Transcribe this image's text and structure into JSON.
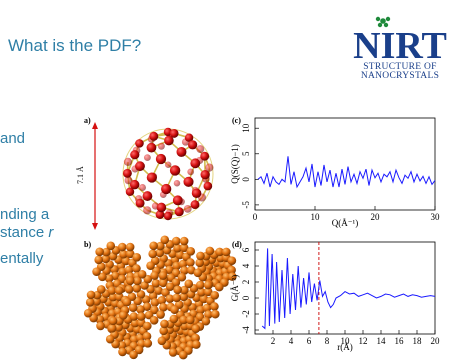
{
  "slide": {
    "title": "What is the PDF?",
    "bullets": [
      {
        "text": " and"
      },
      {
        "text": "nding a"
      },
      {
        "text": "stance ",
        "italic": "r"
      },
      {
        "text": "entally"
      }
    ]
  },
  "logo": {
    "brand": "NIRT",
    "subtitle_line1": "STRUCTURE OF",
    "subtitle_line2": "NANOCRYSTALS",
    "colors": {
      "brand": "#1a3f8a",
      "star": "#1f8a3b"
    }
  },
  "panels": {
    "a": {
      "label": "a)",
      "size_label": "7.1 Å"
    },
    "b": {
      "label": "b)"
    },
    "c": {
      "label": "(c)"
    },
    "d": {
      "label": "(d)"
    }
  },
  "chart_data": [
    {
      "type": "line",
      "panel": "c",
      "xlabel": "Q(Å⁻¹)",
      "ylabel": "Q(S(Q)−1)",
      "xlim": [
        0,
        30
      ],
      "ylim": [
        -6,
        12
      ],
      "xticks": [
        0,
        10,
        20,
        30
      ],
      "yticks": [
        -5,
        0,
        5,
        10
      ],
      "line_color": "#1a1aff",
      "series": [
        {
          "x": [
            0.5,
            1,
            1.5,
            2,
            2.5,
            3,
            3.5,
            4,
            4.5,
            5,
            5.5,
            6,
            6.5,
            7,
            7.5,
            8,
            8.5,
            9,
            9.5,
            10,
            10.5,
            11,
            11.5,
            12,
            12.5,
            13,
            13.5,
            14,
            14.5,
            15,
            15.5,
            16,
            16.5,
            17,
            17.5,
            18,
            18.5,
            19,
            19.5,
            20,
            20.5,
            21,
            21.5,
            22,
            22.5,
            23,
            23.5,
            24,
            24.5,
            25,
            25.5,
            26,
            26.5,
            27,
            27.5,
            28,
            28.5,
            29,
            29.5,
            30
          ],
          "y": [
            0,
            0.5,
            -0.8,
            1.2,
            -1.5,
            0.5,
            -0.5,
            -1,
            0,
            -0.5,
            4.5,
            -1,
            1.5,
            -1.5,
            -0.5,
            0.5,
            2.2,
            -0.5,
            3,
            -1.5,
            1.5,
            -1.2,
            2.8,
            -0.5,
            1.8,
            -1.5,
            1.2,
            -1.5,
            2,
            -1,
            2.5,
            -0.5,
            1,
            -0.8,
            1.5,
            0.2,
            2,
            -1.2,
            1.8,
            0.3,
            1.2,
            -0.5,
            1,
            0.5,
            1.5,
            -0.5,
            1.8,
            0.3,
            -0.8,
            0.8,
            0.2,
            1.5,
            -0.5,
            1,
            -0.3,
            0.6,
            -0.8,
            0.5,
            -1,
            -0.2
          ]
        }
      ]
    },
    {
      "type": "line",
      "panel": "d",
      "xlabel": "r(Å)",
      "ylabel": "G(Å⁻²)",
      "xlim": [
        0,
        20
      ],
      "ylim": [
        -4.5,
        7
      ],
      "xticks": [
        2,
        4,
        6,
        8,
        10,
        12,
        14,
        16,
        18,
        20
      ],
      "yticks": [
        -4,
        -2,
        0,
        2,
        4,
        6
      ],
      "line_color": "#1a1aff",
      "marker_line": {
        "x": 7.1,
        "color": "#cc0000"
      },
      "series": [
        {
          "x": [
            0.8,
            1.1,
            1.4,
            1.6,
            1.9,
            2.2,
            2.4,
            2.7,
            3.0,
            3.3,
            3.6,
            3.9,
            4.2,
            4.5,
            4.8,
            5.1,
            5.4,
            5.7,
            6.0,
            6.3,
            6.6,
            6.9,
            7.2,
            7.5,
            7.8,
            8.1,
            8.4,
            8.7,
            9.0,
            9.5,
            10,
            10.5,
            11,
            11.5,
            12,
            12.5,
            13,
            13.5,
            14,
            14.5,
            15,
            15.5,
            16,
            16.5,
            17,
            17.5,
            18,
            18.5,
            19,
            19.5,
            20
          ],
          "y": [
            -3.5,
            -3.8,
            6.2,
            -3.5,
            5.5,
            -3.2,
            4.5,
            -3,
            3.5,
            -2.5,
            5,
            -2,
            3,
            -1.5,
            4,
            -1.2,
            2.5,
            -0.8,
            3.2,
            -0.5,
            1.8,
            -0.3,
            2.2,
            0.2,
            0.8,
            -0.5,
            -1.2,
            -0.8,
            0,
            0.3,
            0.8,
            0.5,
            0.6,
            0.2,
            0.4,
            0.6,
            0.3,
            0,
            0.2,
            0.5,
            0.4,
            0.1,
            0.3,
            0.5,
            0.2,
            0.4,
            0.3,
            0.1,
            0.2,
            0.3,
            0.2
          ]
        }
      ]
    }
  ]
}
